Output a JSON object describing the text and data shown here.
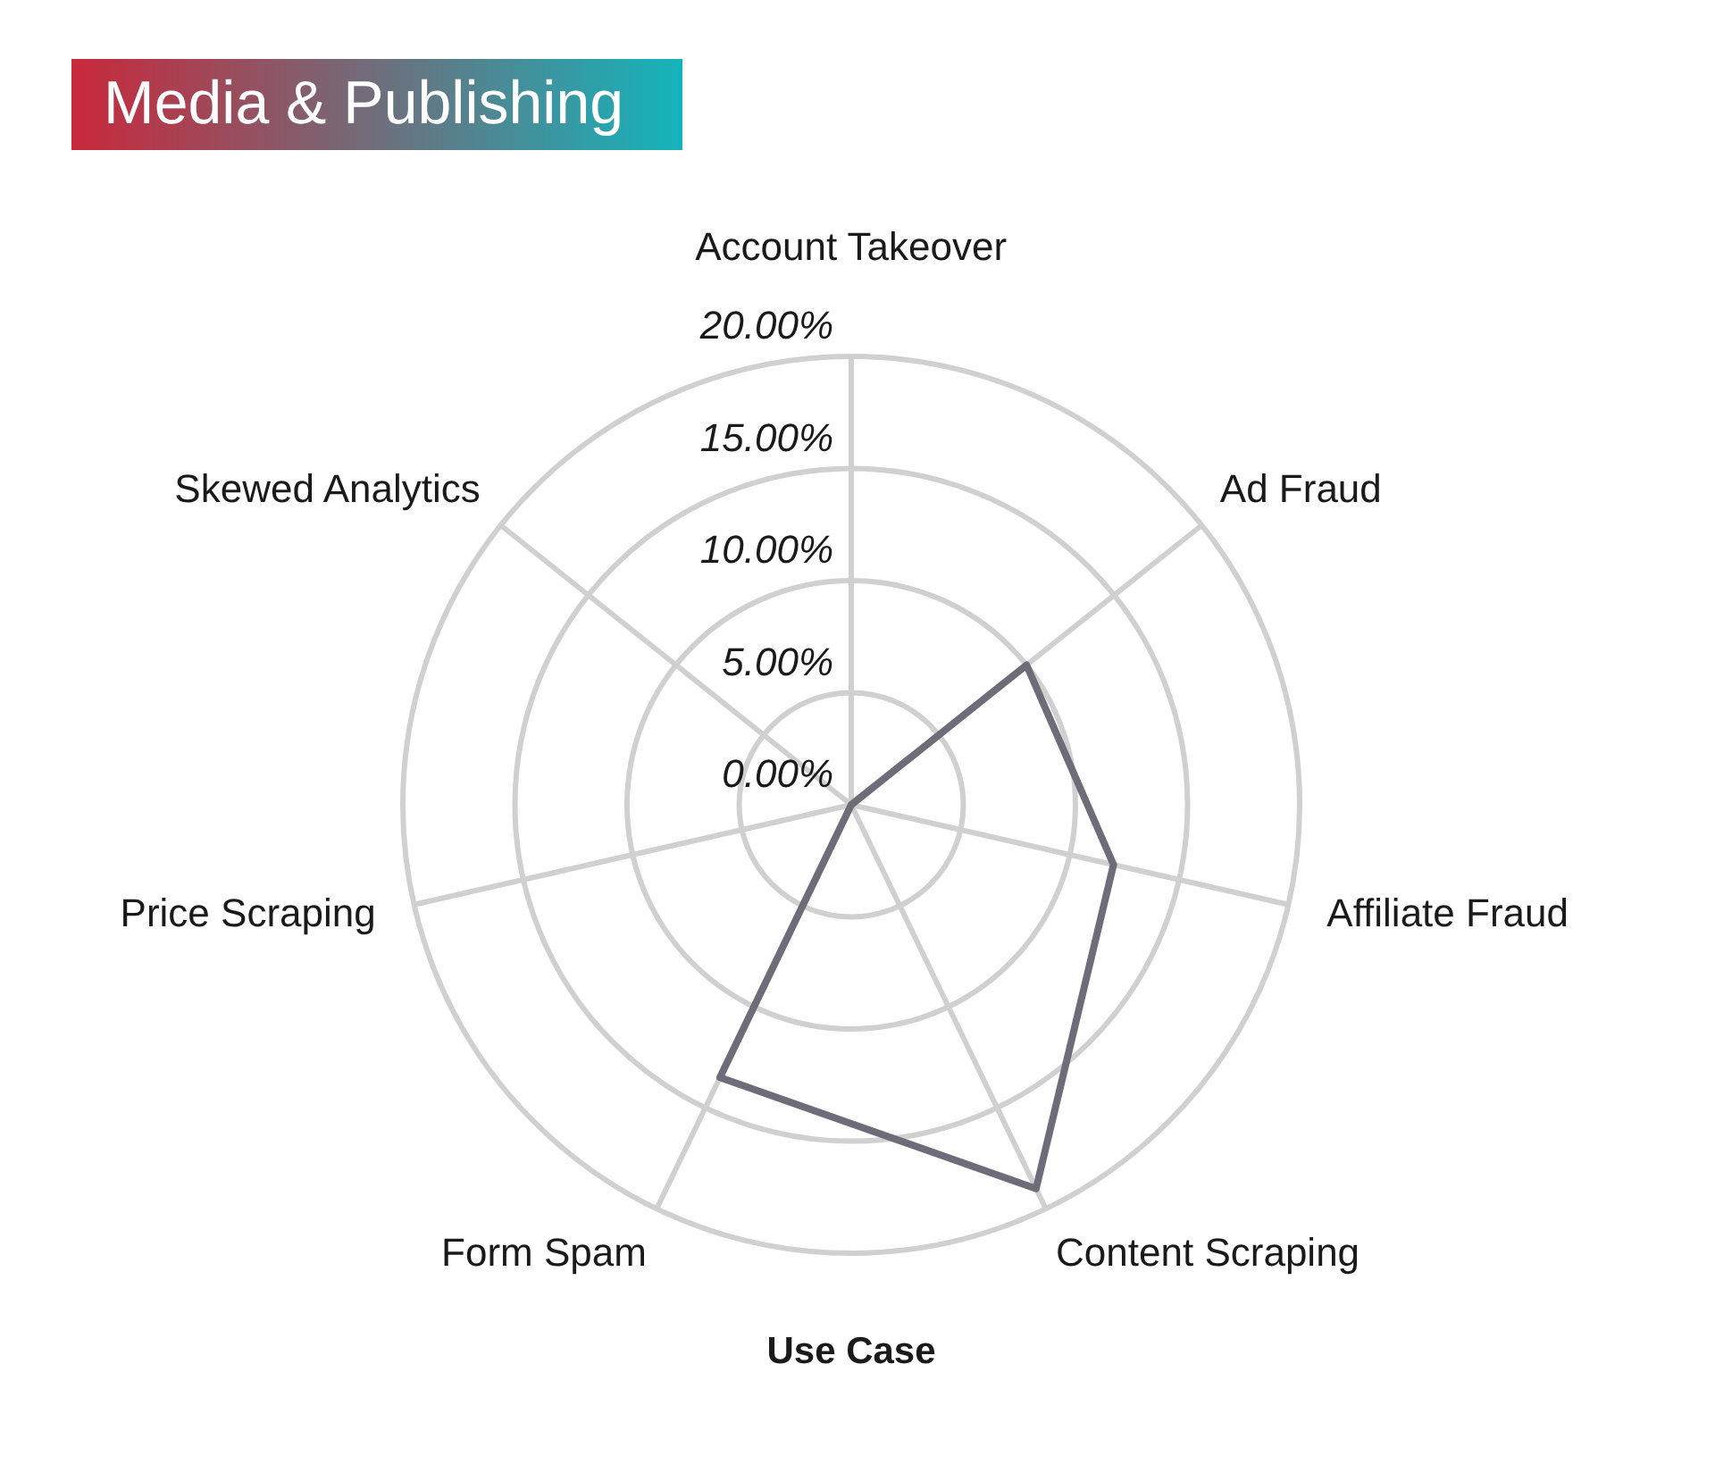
{
  "chart_data": {
    "type": "radar",
    "title": "Media & Publishing",
    "xlabel": "Use Case",
    "categories": [
      "Account Takeover",
      "Ad Fraud",
      "Affiliate Fraud",
      "Content Scraping",
      "Form Spam",
      "Price Scraping",
      "Skewed Analytics"
    ],
    "series": [
      {
        "color": "#6e6c79",
        "values": [
          0,
          10,
          12,
          19,
          13.5,
          0,
          0
        ]
      }
    ],
    "ylim": [
      0,
      20
    ],
    "yticks": [
      {
        "value": 0,
        "label": "0.00%"
      },
      {
        "value": 5,
        "label": "5.00%"
      },
      {
        "value": 10,
        "label": "10.00%"
      },
      {
        "value": 15,
        "label": "15.00%"
      },
      {
        "value": 20,
        "label": "20.00%"
      }
    ],
    "grid": true
  }
}
